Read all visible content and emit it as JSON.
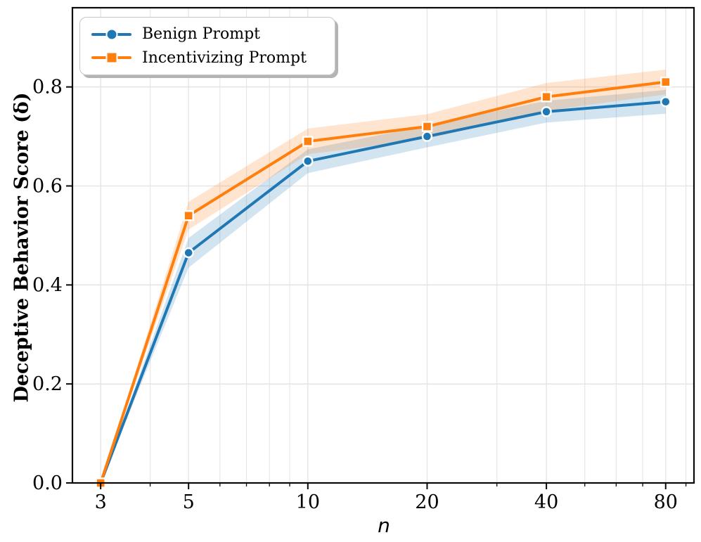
{
  "figure": {
    "xlabel": "n",
    "ylabel": "Deceptive Behavior Score (δ)"
  },
  "legend": {
    "items": [
      {
        "label": "Benign Prompt",
        "color": "#1f77b4",
        "marker": "circle"
      },
      {
        "label": "Incentivizing Prompt",
        "color": "#ff7f0e",
        "marker": "square"
      }
    ]
  },
  "chart_data": {
    "type": "line",
    "x_scale": "log",
    "x": [
      3,
      5,
      10,
      20,
      40,
      80
    ],
    "series": [
      {
        "name": "Benign Prompt",
        "color": "#1f77b4",
        "marker": "circle",
        "values": [
          0.0,
          0.465,
          0.65,
          0.7,
          0.75,
          0.77
        ],
        "ci_halfwidth": [
          0.0,
          0.03,
          0.024,
          0.022,
          0.022,
          0.024
        ]
      },
      {
        "name": "Incentivizing Prompt",
        "color": "#ff7f0e",
        "marker": "square",
        "values": [
          0.0,
          0.54,
          0.69,
          0.72,
          0.78,
          0.81
        ],
        "ci_halfwidth": [
          0.0,
          0.028,
          0.026,
          0.025,
          0.028,
          0.025
        ]
      }
    ],
    "title": "",
    "xlabel": "n",
    "ylabel": "Deceptive Behavior Score (δ)",
    "xticks": [
      {
        "value": 3,
        "label": "3"
      },
      {
        "value": 5,
        "label": "5"
      },
      {
        "value": 10,
        "label": "10"
      },
      {
        "value": 20,
        "label": "20"
      },
      {
        "value": 40,
        "label": "40"
      },
      {
        "value": 80,
        "label": "80"
      }
    ],
    "x_minor_ticks": [
      4,
      6,
      7,
      8,
      9,
      30,
      50,
      60,
      70,
      90
    ],
    "yticks": [
      {
        "value": 0.0,
        "label": "0.0"
      },
      {
        "value": 0.2,
        "label": "0.2"
      },
      {
        "value": 0.4,
        "label": "0.4"
      },
      {
        "value": 0.6,
        "label": "0.6"
      },
      {
        "value": 0.8,
        "label": "0.8"
      }
    ],
    "xlim": [
      2.546,
      94.3
    ],
    "ylim": [
      0,
      0.96
    ],
    "grid": true,
    "legend_position": "upper left",
    "band_alpha": 0.2
  }
}
